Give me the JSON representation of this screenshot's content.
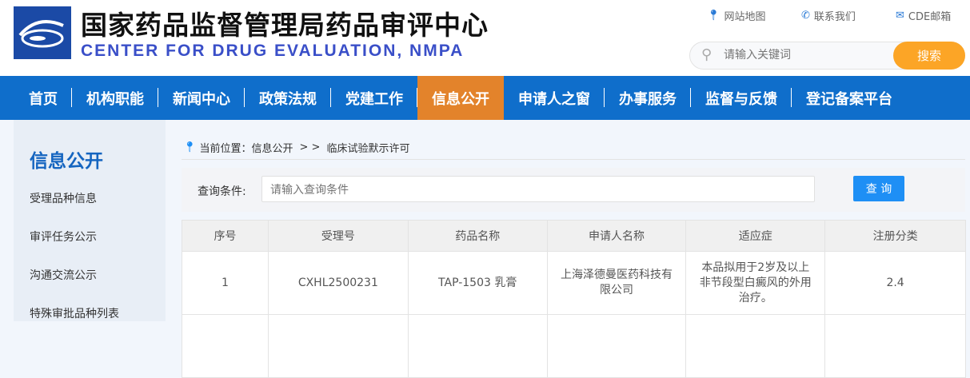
{
  "header": {
    "title_cn": "国家药品监督管理局药品审评中心",
    "title_en": "CENTER FOR DRUG EVALUATION, NMPA",
    "links": [
      {
        "icon": "map-pin-icon",
        "label": "网站地图"
      },
      {
        "icon": "phone-icon",
        "label": "联系我们"
      },
      {
        "icon": "mail-icon",
        "label": "CDE邮箱"
      }
    ],
    "search_placeholder": "请输入关键词",
    "search_button": "搜索"
  },
  "nav": {
    "items": [
      "首页",
      "机构职能",
      "新闻中心",
      "政策法规",
      "党建工作",
      "信息公开",
      "申请人之窗",
      "办事服务",
      "监督与反馈",
      "登记备案平台"
    ],
    "active": "信息公开"
  },
  "sidebar": {
    "title": "信息公开",
    "items": [
      "受理品种信息",
      "审评任务公示",
      "沟通交流公示",
      "特殊审批品种列表"
    ]
  },
  "breadcrumb": {
    "prefix": "当前位置：信息公开",
    "sep": "> >",
    "current": "临床试验默示许可"
  },
  "query": {
    "label": "查询条件:",
    "placeholder": "请输入查询条件",
    "button": "查 询"
  },
  "table": {
    "columns": [
      "序号",
      "受理号",
      "药品名称",
      "申请人名称",
      "适应症",
      "注册分类"
    ],
    "rows": [
      [
        "1",
        "CXHL2500231",
        "TAP-1503 乳膏",
        "上海泽德曼医药科技有限公司",
        "本品拟用于2岁及以上非节段型白癜风的外用治疗。",
        "2.4"
      ]
    ]
  },
  "colors": {
    "nav": "#0f6ecb",
    "nav_active": "#e3832b",
    "search_button": "#fca526",
    "query_button": "#1e8ff5"
  }
}
